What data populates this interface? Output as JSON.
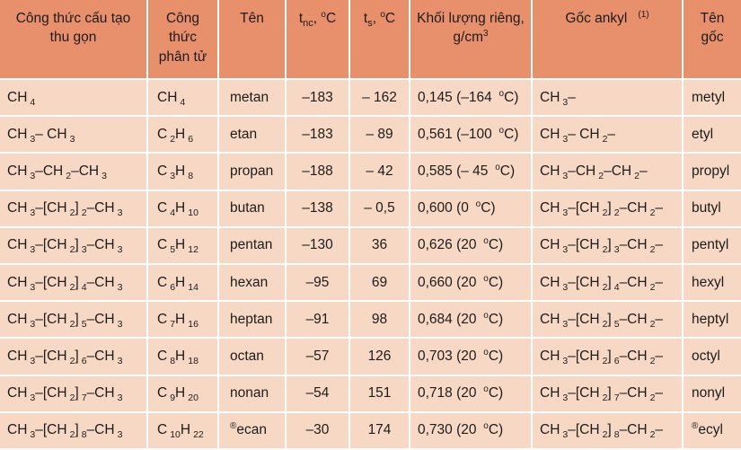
{
  "colors": {
    "header_bg": "#e88f6b",
    "row_bg": "#f7d8c4",
    "grid": "#ffffff",
    "text": "#1c1c1a"
  },
  "table": {
    "columns": [
      {
        "label": "Công thức cấu tạo thu gọn"
      },
      {
        "label": "Công thức phân tử"
      },
      {
        "label": "Tên"
      },
      {
        "label": "t`nc`, ^o^C"
      },
      {
        "label": "t`s`, ^o^C"
      },
      {
        "label": "Khối lượng riêng, g/cm^3^"
      },
      {
        "label": "Gốc ankyl  ^(1)^"
      },
      {
        "label": "Tên gốc"
      }
    ],
    "rows": [
      [
        "CH`4`",
        "CH`4`",
        "metan",
        "–183",
        "– 162",
        "0,145 (–164 ^o^C)",
        "CH`3`–",
        "metyl"
      ],
      [
        "CH`3`– CH`3`",
        "C`2`H`6`",
        "etan",
        "–183",
        "– 89",
        "0,561 (–100 ^o^C)",
        "CH`3`– CH`2`–",
        "etyl"
      ],
      [
        "CH`3`–CH`2`–CH`3`",
        "C`3`H`8`",
        "propan",
        "–188",
        "– 42",
        "0,585 (– 45 ^o^C)",
        "CH`3`–CH`2`–CH`2`–",
        "propyl"
      ],
      [
        "CH`3`–[CH`2`]`2`–CH`3`",
        "C`4`H`10`",
        "butan",
        "–138",
        "– 0,5",
        "0,600 (0 ^o^C)",
        "CH`3`–[CH`2`]`2`–CH`2`–",
        "butyl"
      ],
      [
        "CH`3`–[CH`2`]`3`–CH`3`",
        "C`5`H`12`",
        "pentan",
        "–130",
        "36",
        "0,626 (20 ^o^C)",
        "CH`3`–[CH`2`]`3`–CH`2`–",
        "pentyl"
      ],
      [
        "CH`3`–[CH`2`]`4`–CH`3`",
        "C`6`H`14`",
        "hexan",
        "–95",
        "69",
        "0,660 (20 ^o^C)",
        "CH`3`–[CH`2`]`4`–CH`2`–",
        "hexyl"
      ],
      [
        "CH`3`–[CH`2`]`5`–CH`3`",
        "C`7`H`16`",
        "heptan",
        "–91",
        "98",
        "0,684 (20 ^o^C)",
        "CH`3`–[CH`2`]`5`–CH`2`–",
        "heptyl"
      ],
      [
        "CH`3`–[CH`2`]`6`–CH`3`",
        "C`8`H`18`",
        "octan",
        "–57",
        "126",
        "0,703 (20 ^o^C)",
        "CH`3`–[CH`2`]`6`–CH`2`–",
        "octyl"
      ],
      [
        "CH`3`–[CH`2`]`7`–CH`3`",
        "C`9`H`20`",
        "nonan",
        "–54",
        "151",
        "0,718 (20 ^o^C)",
        "CH`3`–[CH`2`]`7`–CH`2`–",
        "nonyl"
      ],
      [
        "CH`3`–[CH`2`]`8`–CH`3`",
        "C`10`H`22`",
        "^®^ecan",
        "–30",
        "174",
        "0,730 (20 ^o^C)",
        "CH`3`–[CH`2`]`8`–CH`2`–",
        "^®^ecyl"
      ]
    ]
  }
}
